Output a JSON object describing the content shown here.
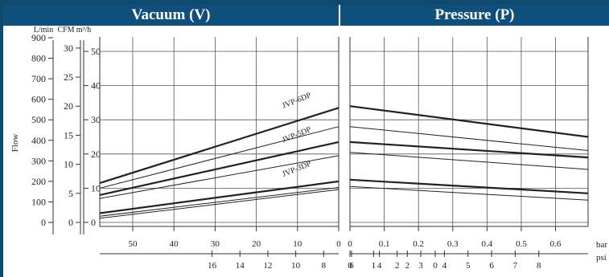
{
  "headers": {
    "vacuum": "Vacuum (V)",
    "pressure": "Pressure (P)"
  },
  "colors": {
    "banner": "#0f4f7b",
    "outer": "#0e4a6e",
    "lines": "#333333"
  },
  "chart_data": {
    "type": "line",
    "ylabel": "Flow",
    "flow_axes": [
      {
        "unit": "L/min",
        "ticks": [
          0,
          100,
          200,
          300,
          400,
          500,
          600,
          700,
          800,
          900
        ],
        "labels": [
          "0",
          "100",
          "200",
          "300",
          "400",
          "500",
          "600",
          "700",
          "800",
          "900"
        ]
      },
      {
        "unit": "CFM",
        "ticks": [
          0,
          5,
          10,
          15,
          20,
          25,
          30
        ],
        "labels": [
          "0",
          "5",
          "10",
          "15",
          "20",
          "25",
          "30"
        ]
      },
      {
        "unit": "m³/h",
        "ticks": [
          0,
          10,
          20,
          30,
          40,
          50
        ],
        "labels": [
          "0",
          "10",
          "20",
          "30",
          "40",
          "50"
        ]
      }
    ],
    "ylim": [
      0,
      53
    ],
    "vacuum": {
      "xlim": [
        58,
        0
      ],
      "x_axes": [
        {
          "unit": "",
          "ticks": [
            50,
            40,
            30,
            20,
            10,
            0
          ],
          "labels": [
            "50",
            "40",
            "30",
            "20",
            "10",
            "0"
          ]
        },
        {
          "unit": "",
          "ticks": [
            16,
            14,
            12,
            10,
            8,
            6,
            4,
            2,
            0
          ],
          "labels": [
            "16",
            "14",
            "12",
            "10",
            "8",
            "6",
            "4",
            "2",
            "0"
          ]
        }
      ],
      "series": [
        {
          "name": "JVP-6DP",
          "label_at": [
            10,
            35
          ],
          "x": [
            58,
            0
          ],
          "y": [
            11.5,
            33.5
          ],
          "bold": true
        },
        {
          "name": "",
          "x": [
            58,
            0
          ],
          "y": [
            10.0,
            28.0
          ],
          "bold": false
        },
        {
          "name": "JVP-5DP",
          "label_at": [
            10,
            25
          ],
          "x": [
            58,
            0
          ],
          "y": [
            8.0,
            23.5
          ],
          "bold": true
        },
        {
          "name": "",
          "x": [
            58,
            0
          ],
          "y": [
            7.0,
            19.5
          ],
          "bold": false
        },
        {
          "name": "JVP-3DP",
          "label_at": [
            10,
            15
          ],
          "x": [
            58,
            0
          ],
          "y": [
            2.7,
            12.0
          ],
          "bold": true
        },
        {
          "name": "",
          "x": [
            58,
            0
          ],
          "y": [
            1.8,
            10.2
          ],
          "bold": false
        },
        {
          "name": "",
          "x": [
            58,
            0
          ],
          "y": [
            1.2,
            9.6
          ],
          "bold": false
        }
      ]
    },
    "pressure": {
      "xlim": [
        0,
        0.695
      ],
      "x_axes": [
        {
          "unit": "bar",
          "ticks": [
            0,
            0.1,
            0.2,
            0.3,
            0.4,
            0.5,
            0.6
          ],
          "labels": [
            "0",
            "0.1",
            "0.2",
            "0.3",
            "0.4",
            "0.5",
            "0.6"
          ]
        },
        {
          "unit": "psi",
          "ticks": [
            0,
            1,
            2,
            3,
            4,
            5,
            6,
            7,
            8
          ],
          "labels": [
            "0",
            "1",
            "2",
            "3",
            "4",
            "5",
            "6",
            "7",
            "8"
          ]
        }
      ],
      "series": [
        {
          "name": "",
          "x": [
            0,
            0.695
          ],
          "y": [
            34.0,
            25.0
          ],
          "bold": true
        },
        {
          "name": "",
          "x": [
            0,
            0.695
          ],
          "y": [
            28.0,
            21.0
          ],
          "bold": false
        },
        {
          "name": "",
          "x": [
            0,
            0.695
          ],
          "y": [
            23.5,
            19.0
          ],
          "bold": true
        },
        {
          "name": "",
          "x": [
            0,
            0.695
          ],
          "y": [
            20.5,
            15.5
          ],
          "bold": false
        },
        {
          "name": "",
          "x": [
            0,
            0.695
          ],
          "y": [
            12.5,
            8.5
          ],
          "bold": true
        },
        {
          "name": "",
          "x": [
            0,
            0.695
          ],
          "y": [
            10.5,
            6.5
          ],
          "bold": false
        }
      ]
    },
    "grid": true
  }
}
